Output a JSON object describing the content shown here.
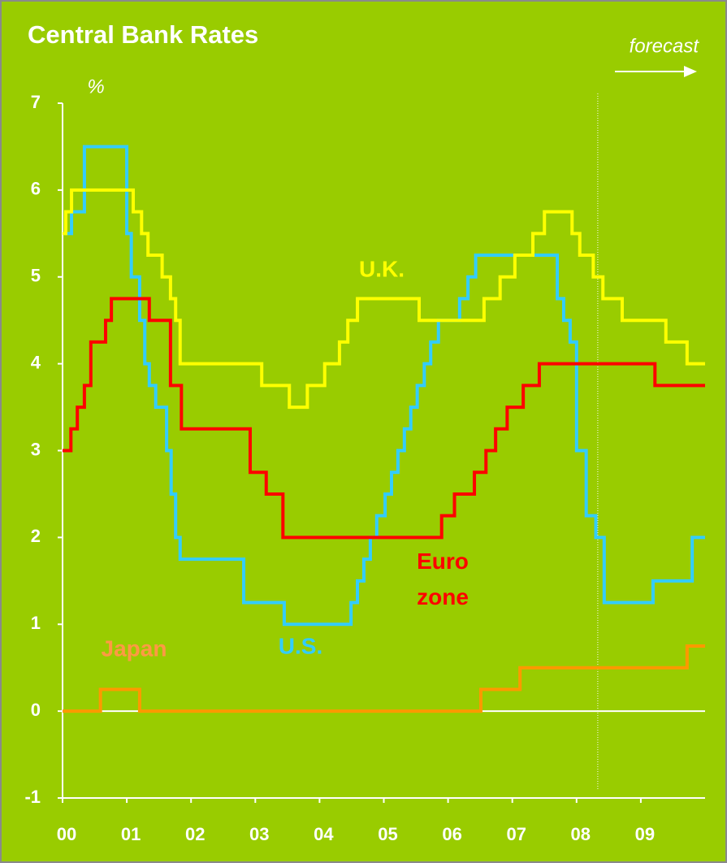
{
  "chart_data": {
    "type": "line",
    "step": "post",
    "title": "Central Bank Rates",
    "y_label": "%",
    "forecast_label": "forecast",
    "forecast_start": 8.33,
    "xlim": [
      0,
      10
    ],
    "ylim": [
      -1,
      7
    ],
    "xticks": [
      {
        "value": 0,
        "label": "00"
      },
      {
        "value": 1,
        "label": "01"
      },
      {
        "value": 2,
        "label": "02"
      },
      {
        "value": 3,
        "label": "03"
      },
      {
        "value": 4,
        "label": "04"
      },
      {
        "value": 5,
        "label": "05"
      },
      {
        "value": 6,
        "label": "06"
      },
      {
        "value": 7,
        "label": "07"
      },
      {
        "value": 8,
        "label": "08"
      },
      {
        "value": 9,
        "label": "09"
      }
    ],
    "yticks": [
      -1,
      0,
      1,
      2,
      3,
      4,
      5,
      6,
      7
    ],
    "series": [
      {
        "name": "U.S.",
        "color": "#33ccff",
        "label_color": "#33ccff",
        "x": [
          0,
          0.14,
          0.34,
          1.0,
          1.07,
          1.2,
          1.28,
          1.35,
          1.45,
          1.62,
          1.69,
          1.76,
          1.83,
          1.93,
          2.82,
          3.45,
          4.49,
          4.59,
          4.69,
          4.79,
          4.89,
          5.02,
          5.12,
          5.22,
          5.32,
          5.42,
          5.52,
          5.63,
          5.73,
          5.85,
          6.18,
          6.31,
          6.43,
          7.7,
          7.8,
          7.9,
          8.0,
          8.15,
          8.3,
          8.43,
          9.19,
          9.8,
          10
        ],
        "values": [
          5.5,
          5.75,
          6.5,
          5.5,
          5.0,
          4.5,
          4.0,
          3.75,
          3.5,
          3.0,
          2.5,
          2.0,
          1.75,
          1.75,
          1.25,
          1.0,
          1.25,
          1.5,
          1.75,
          2.0,
          2.25,
          2.5,
          2.75,
          3.0,
          3.25,
          3.5,
          3.75,
          4.0,
          4.25,
          4.5,
          4.75,
          5.0,
          5.25,
          4.75,
          4.5,
          4.25,
          3.0,
          2.25,
          2.0,
          1.25,
          1.5,
          2.0,
          2.0
        ]
      },
      {
        "name": "Euro zone",
        "color": "#ff0000",
        "label_color": "#ff0000",
        "x": [
          0,
          0.13,
          0.23,
          0.34,
          0.44,
          0.67,
          0.76,
          1.35,
          1.68,
          1.85,
          2.92,
          3.17,
          3.43,
          5.9,
          6.1,
          6.41,
          6.59,
          6.74,
          6.92,
          7.17,
          7.42,
          9.22,
          10
        ],
        "values": [
          3.0,
          3.25,
          3.5,
          3.75,
          4.25,
          4.5,
          4.75,
          4.5,
          3.75,
          3.25,
          2.75,
          2.5,
          2.0,
          2.25,
          2.5,
          2.75,
          3.0,
          3.25,
          3.5,
          3.75,
          4.0,
          3.75,
          3.75
        ]
      },
      {
        "name": "U.K.",
        "color": "#ffff00",
        "label_color": "#ffff00",
        "x": [
          0,
          0.05,
          0.14,
          1.1,
          1.23,
          1.33,
          1.55,
          1.68,
          1.76,
          1.83,
          3.1,
          3.53,
          3.81,
          4.08,
          4.31,
          4.44,
          4.59,
          5.55,
          6.56,
          6.81,
          7.04,
          7.32,
          7.5,
          7.93,
          8.05,
          8.26,
          8.41,
          8.71,
          9.39,
          9.72,
          10
        ],
        "values": [
          5.5,
          5.75,
          6.0,
          5.75,
          5.5,
          5.25,
          5.0,
          4.75,
          4.5,
          4.0,
          3.75,
          3.5,
          3.75,
          4.0,
          4.25,
          4.5,
          4.75,
          4.5,
          4.75,
          5.0,
          5.25,
          5.5,
          5.75,
          5.5,
          5.25,
          5.0,
          4.75,
          4.5,
          4.25,
          4.0,
          4.0
        ]
      },
      {
        "name": "Japan",
        "color": "#ff9900",
        "label_color": "#ff9944",
        "x": [
          0,
          0.59,
          1.2,
          6.51,
          7.12,
          9.72,
          10
        ],
        "values": [
          0,
          0.25,
          0,
          0.25,
          0.5,
          0.75,
          0.75
        ]
      }
    ]
  }
}
